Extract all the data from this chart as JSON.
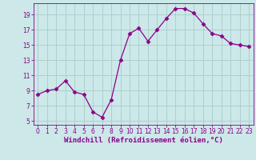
{
  "x": [
    0,
    1,
    2,
    3,
    4,
    5,
    6,
    7,
    8,
    9,
    10,
    11,
    12,
    13,
    14,
    15,
    16,
    17,
    18,
    19,
    20,
    21,
    22,
    23
  ],
  "y": [
    8.5,
    9.0,
    9.2,
    10.3,
    8.8,
    8.5,
    6.2,
    5.5,
    7.8,
    13.0,
    16.5,
    17.2,
    15.5,
    17.0,
    18.5,
    19.8,
    19.8,
    19.2,
    17.8,
    16.5,
    16.2,
    15.2,
    15.0,
    14.8
  ],
  "line_color": "#8B008B",
  "marker": "D",
  "marker_size": 2.5,
  "bg_color": "#cce8e8",
  "grid_color": "#aacccc",
  "xlabel": "Windchill (Refroidissement éolien,°C)",
  "xlim": [
    -0.5,
    23.5
  ],
  "ylim": [
    4.5,
    20.5
  ],
  "yticks": [
    5,
    7,
    9,
    11,
    13,
    15,
    17,
    19
  ],
  "xticks": [
    0,
    1,
    2,
    3,
    4,
    5,
    6,
    7,
    8,
    9,
    10,
    11,
    12,
    13,
    14,
    15,
    16,
    17,
    18,
    19,
    20,
    21,
    22,
    23
  ],
  "tick_color": "#8B008B",
  "label_fontsize": 6.5,
  "tick_fontsize": 5.5
}
